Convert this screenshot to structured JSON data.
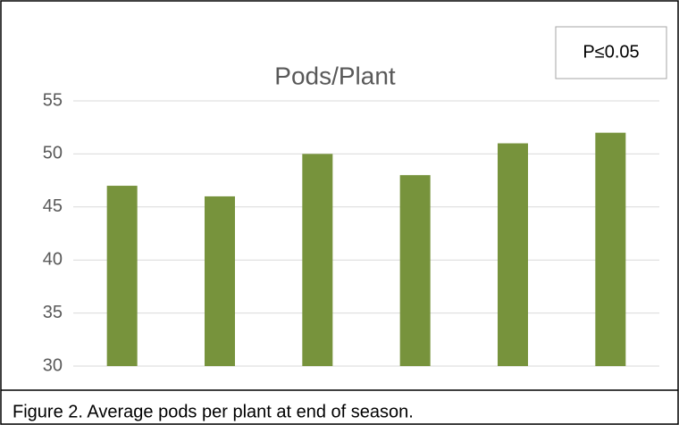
{
  "chart_data": {
    "type": "bar",
    "title": "Pods/Plant",
    "annotation": "P≤0.05",
    "caption": "Figure 2.  Average pods per plant at end of season.",
    "categories": [
      null,
      null,
      null,
      null,
      null,
      null
    ],
    "values": [
      47,
      46,
      50,
      48,
      51,
      52
    ],
    "color": "#77933c",
    "ylim": [
      30,
      55
    ],
    "yticks": [
      30,
      35,
      40,
      45,
      50,
      55
    ],
    "grid": true
  }
}
